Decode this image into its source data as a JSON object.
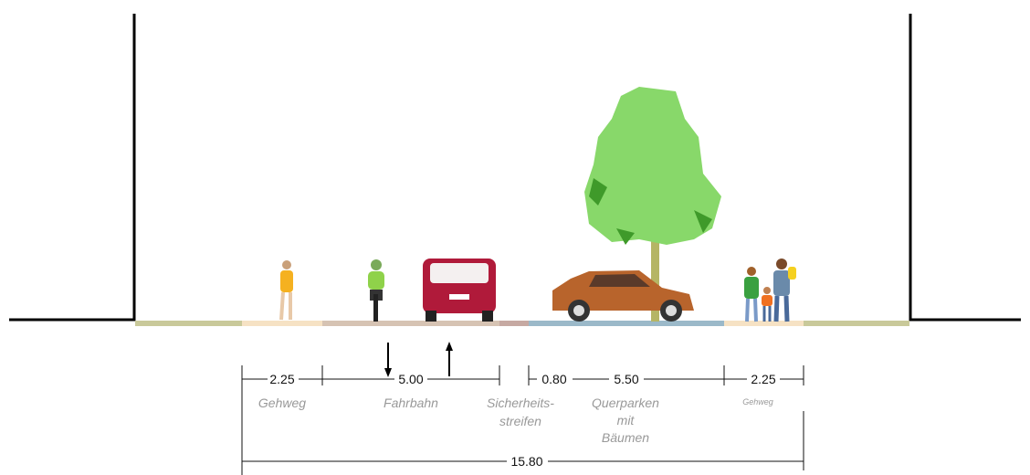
{
  "segments": [
    {
      "width": "2.25",
      "label": [
        "Gehweg"
      ]
    },
    {
      "width": "5.00",
      "label": [
        "Fahrbahn"
      ]
    },
    {
      "width": "0.80",
      "label": [
        "Sicherheits-",
        "streifen"
      ]
    },
    {
      "width": "5.50",
      "label": [
        "Querparken",
        "mit",
        "Bäumen"
      ]
    },
    {
      "width": "2.25",
      "label": [
        "Gehweg"
      ]
    }
  ],
  "total": "15.80"
}
